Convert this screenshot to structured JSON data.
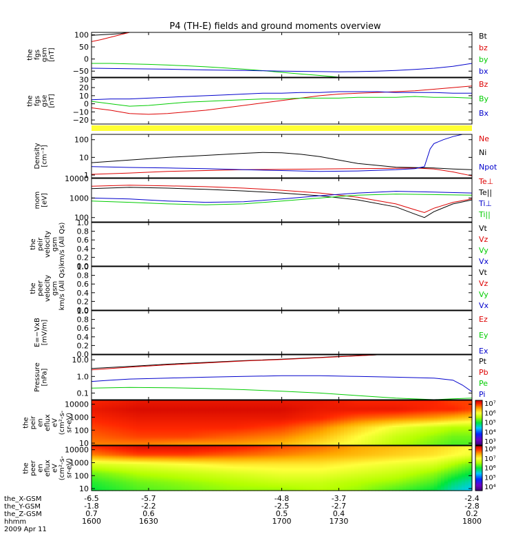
{
  "title": "P4 (TH-E) fields and ground moments overview",
  "x_axis": {
    "rows": [
      {
        "label": "the_X-GSM",
        "values": [
          "-6.5",
          "-5.7",
          "-4.8",
          "-3.7",
          "-2.4"
        ]
      },
      {
        "label": "the_Y-GSM",
        "values": [
          "-1.8",
          "-2.2",
          "-2.5",
          "-2.7",
          "-2.8"
        ]
      },
      {
        "label": "the_Z-GSM",
        "values": [
          "0.7",
          "0.6",
          "0.5",
          "0.4",
          "0.2"
        ]
      },
      {
        "label": "hhmm",
        "values": [
          "1600",
          "1630",
          "1700",
          "1730",
          "1800"
        ]
      }
    ],
    "date": "2009 Apr 11"
  },
  "colorbars": [
    {
      "labels": [
        "10⁷",
        "10⁶",
        "10⁵",
        "10⁴",
        "10³"
      ]
    },
    {
      "labels": [
        "10⁸",
        "10⁷",
        "10⁶",
        "10⁵",
        "10⁴"
      ]
    }
  ],
  "chart_data": [
    {
      "type": "line",
      "ylabel": [
        "the",
        "fgs",
        "gsm",
        "[nT]"
      ],
      "ylim": [
        -75,
        110
      ],
      "yticks": [
        -50,
        0,
        50,
        100
      ],
      "ytick_labels": [
        "−50",
        "0",
        "50",
        "100"
      ],
      "series": [
        {
          "name": "Bt",
          "color": "#000000",
          "x": [
            1600,
            1605,
            1610,
            1615,
            1620
          ],
          "y": [
            98,
            100,
            102,
            105,
            110
          ]
        },
        {
          "name": "bz",
          "color": "#dd0000",
          "x": [
            1600,
            1605,
            1610,
            1615,
            1620
          ],
          "y": [
            72,
            80,
            90,
            100,
            110
          ]
        },
        {
          "name": "by",
          "color": "#00cc00",
          "x": [
            1600,
            1610,
            1620,
            1630,
            1640,
            1650,
            1660,
            1670,
            1680,
            1690,
            1700,
            1710,
            1720,
            1730
          ],
          "y": [
            -18,
            -18,
            -20,
            -22,
            -25,
            -28,
            -32,
            -37,
            -42,
            -48,
            -55,
            -62,
            -68,
            -75
          ]
        },
        {
          "name": "bx",
          "color": "#0000cc",
          "x": [
            1600,
            1620,
            1640,
            1660,
            1680,
            1700,
            1720,
            1730,
            1740,
            1750,
            1760,
            1770,
            1780,
            1790,
            1800
          ],
          "y": [
            -38,
            -40,
            -42,
            -45,
            -47,
            -50,
            -52,
            -53,
            -52,
            -50,
            -47,
            -43,
            -38,
            -30,
            -18
          ]
        }
      ]
    },
    {
      "type": "line",
      "ylabel": [
        "the",
        "fgs",
        "gse",
        "[nT]"
      ],
      "ylim": [
        -25,
        32
      ],
      "yticks": [
        -20,
        -10,
        0,
        10,
        20,
        30
      ],
      "ytick_labels": [
        "−20",
        "−10",
        "0",
        "10",
        "20",
        "30"
      ],
      "series": [
        {
          "name": "Bz",
          "color": "#dd0000",
          "x": [
            1600,
            1610,
            1620,
            1630,
            1640,
            1650,
            1660,
            1670,
            1680,
            1690,
            1700,
            1710,
            1720,
            1730,
            1740,
            1750,
            1760,
            1770,
            1780,
            1790,
            1800
          ],
          "y": [
            -5,
            -8,
            -12,
            -13,
            -12,
            -10,
            -8,
            -5,
            -2,
            1,
            4,
            7,
            10,
            12,
            13,
            14,
            15,
            16,
            18,
            20,
            22
          ]
        },
        {
          "name": "By",
          "color": "#00cc00",
          "x": [
            1600,
            1610,
            1620,
            1630,
            1640,
            1650,
            1660,
            1670,
            1680,
            1690,
            1700,
            1710,
            1720,
            1730,
            1740,
            1750,
            1760,
            1770,
            1780,
            1790,
            1800
          ],
          "y": [
            3,
            0,
            -3,
            -2,
            0,
            2,
            3,
            4,
            5,
            6,
            6,
            7,
            7,
            7,
            8,
            8,
            8,
            9,
            8,
            8,
            7
          ]
        },
        {
          "name": "Bx",
          "color": "#0000cc",
          "x": [
            1600,
            1610,
            1620,
            1630,
            1640,
            1650,
            1660,
            1670,
            1680,
            1690,
            1700,
            1710,
            1720,
            1730,
            1740,
            1750,
            1760,
            1770,
            1780,
            1790,
            1800
          ],
          "y": [
            5,
            6,
            6,
            7,
            8,
            9,
            10,
            11,
            12,
            13,
            13,
            14,
            14,
            15,
            15,
            15,
            14,
            14,
            14,
            13,
            13
          ]
        }
      ]
    },
    {
      "type": "line",
      "scale": "log",
      "ylabel": [
        "Density",
        "[cm⁻³]"
      ],
      "ylim": [
        0.7,
        200
      ],
      "yticks": [
        1,
        10,
        100
      ],
      "ytick_labels": [
        "1",
        "10",
        "100"
      ],
      "series": [
        {
          "name": "Ne",
          "color": "#dd0000",
          "x": [
            1600,
            1620,
            1640,
            1660,
            1680,
            1700,
            1720,
            1740,
            1760,
            1770,
            1780,
            1790,
            1800
          ],
          "y": [
            1.1,
            1.3,
            1.6,
            1.8,
            2.0,
            2.1,
            2.2,
            2.3,
            2.4,
            2.5,
            2.2,
            1.5,
            0.9
          ]
        },
        {
          "name": "Ni",
          "color": "#000000",
          "x": [
            1600,
            1620,
            1640,
            1660,
            1680,
            1690,
            1700,
            1710,
            1720,
            1730,
            1740,
            1760,
            1780,
            1790,
            1800
          ],
          "y": [
            5,
            7,
            10,
            13,
            17,
            19,
            18,
            15,
            11,
            7,
            4.5,
            2.8,
            2.5,
            2.2,
            2.0
          ]
        },
        {
          "name": "Npot",
          "color": "#0000cc",
          "x": [
            1600,
            1620,
            1640,
            1660,
            1680,
            1700,
            1720,
            1740,
            1760,
            1770,
            1775,
            1778,
            1780,
            1785,
            1790,
            1795,
            1800
          ],
          "y": [
            3.0,
            2.7,
            2.5,
            2.3,
            2.0,
            1.8,
            1.6,
            1.7,
            2.0,
            2.3,
            3,
            30,
            60,
            100,
            150,
            200,
            200
          ]
        }
      ]
    },
    {
      "type": "line",
      "scale": "log",
      "ylabel": [
        "mom",
        "[eV]"
      ],
      "ylim": [
        60,
        10000
      ],
      "yticks": [
        100,
        1000,
        10000
      ],
      "ytick_labels": [
        "100",
        "1000",
        "10000"
      ],
      "series": [
        {
          "name": "Te⊥",
          "color": "#dd0000",
          "x": [
            1600,
            1620,
            1640,
            1660,
            1680,
            1700,
            1720,
            1740,
            1760,
            1770,
            1775,
            1780,
            1790,
            1800
          ],
          "y": [
            4000,
            4500,
            4200,
            3800,
            3200,
            2500,
            1800,
            1100,
            500,
            250,
            180,
            300,
            600,
            900
          ]
        },
        {
          "name": "Te||",
          "color": "#000000",
          "x": [
            1600,
            1620,
            1640,
            1660,
            1680,
            1700,
            1720,
            1740,
            1760,
            1770,
            1775,
            1780,
            1790,
            1800
          ],
          "y": [
            3000,
            3500,
            3200,
            2800,
            2300,
            1800,
            1300,
            800,
            350,
            150,
            100,
            200,
            500,
            800
          ]
        },
        {
          "name": "Ti⊥",
          "color": "#0000cc",
          "x": [
            1600,
            1620,
            1640,
            1660,
            1680,
            1700,
            1720,
            1740,
            1760,
            1780,
            1800
          ],
          "y": [
            1000,
            900,
            700,
            600,
            650,
            900,
            1300,
            1800,
            2200,
            2000,
            1800
          ]
        },
        {
          "name": "Ti||",
          "color": "#00cc00",
          "x": [
            1600,
            1620,
            1640,
            1660,
            1680,
            1700,
            1720,
            1740,
            1760,
            1780,
            1800
          ],
          "y": [
            700,
            600,
            500,
            450,
            500,
            700,
            1000,
            1400,
            1600,
            1500,
            1400
          ]
        }
      ]
    },
    {
      "type": "line",
      "ylabel": [
        "the",
        "peir",
        "velocity",
        "gsm",
        "km/s (All Qs)"
      ],
      "ylim": [
        0,
        1
      ],
      "yticks": [
        0,
        0.2,
        0.4,
        0.6,
        0.8,
        1.0
      ],
      "ytick_labels": [
        "0.0",
        "0.2",
        "0.4",
        "0.6",
        "0.8",
        "1.0"
      ],
      "series": [
        {
          "name": "Vt",
          "color": "#000000",
          "x": [],
          "y": []
        },
        {
          "name": "Vz",
          "color": "#dd0000",
          "x": [],
          "y": []
        },
        {
          "name": "Vy",
          "color": "#00cc00",
          "x": [],
          "y": []
        },
        {
          "name": "Vx",
          "color": "#0000cc",
          "x": [],
          "y": []
        }
      ]
    },
    {
      "type": "line",
      "ylabel": [
        "the",
        "peer",
        "velocity",
        "gsm",
        "km/s (All Qs)"
      ],
      "ylim": [
        0,
        1
      ],
      "yticks": [
        0,
        0.2,
        0.4,
        0.6,
        0.8,
        1.0
      ],
      "ytick_labels": [
        "0.0",
        "0.2",
        "0.4",
        "0.6",
        "0.8",
        "1.0"
      ],
      "series": [
        {
          "name": "Vt",
          "color": "#000000",
          "x": [],
          "y": []
        },
        {
          "name": "Vz",
          "color": "#dd0000",
          "x": [],
          "y": []
        },
        {
          "name": "Vy",
          "color": "#00cc00",
          "x": [],
          "y": []
        },
        {
          "name": "Vx",
          "color": "#0000cc",
          "x": [],
          "y": []
        }
      ]
    },
    {
      "type": "line",
      "ylabel": [
        "E=−VxB",
        "[mV/m]"
      ],
      "ylim": [
        0,
        1
      ],
      "yticks": [
        0,
        0.2,
        0.4,
        0.6,
        0.8,
        1.0
      ],
      "ytick_labels": [
        "0.0",
        "0.2",
        "0.4",
        "0.6",
        "0.8",
        "1.0"
      ],
      "series": [
        {
          "name": "Ez",
          "color": "#dd0000",
          "x": [],
          "y": []
        },
        {
          "name": "Ey",
          "color": "#00cc00",
          "x": [],
          "y": []
        },
        {
          "name": "Ex",
          "color": "#0000cc",
          "x": [],
          "y": []
        }
      ]
    },
    {
      "type": "line",
      "scale": "log",
      "ylabel": [
        "Pressure",
        "[nPa]"
      ],
      "ylim": [
        0.04,
        20
      ],
      "yticks": [
        0.1,
        1,
        10
      ],
      "ytick_labels": [
        "0.1",
        "1.0",
        "10.0"
      ],
      "series": [
        {
          "name": "Pt",
          "color": "#000000",
          "x": [
            1600,
            1620,
            1640,
            1660,
            1680,
            1700,
            1720,
            1730,
            1740,
            1750
          ],
          "y": [
            3.0,
            4.0,
            5.5,
            7.0,
            9.0,
            11,
            14,
            16,
            18,
            20
          ]
        },
        {
          "name": "Pb",
          "color": "#dd0000",
          "x": [
            1600,
            1620,
            1640,
            1660,
            1680,
            1700,
            1720,
            1730,
            1740,
            1750
          ],
          "y": [
            2.5,
            3.6,
            5.0,
            6.5,
            8.5,
            10.5,
            13.5,
            15.5,
            17.5,
            20
          ]
        },
        {
          "name": "Pe",
          "color": "#00cc00",
          "x": [
            1600,
            1620,
            1640,
            1660,
            1680,
            1700,
            1720,
            1740,
            1760,
            1780,
            1790,
            1800
          ],
          "y": [
            0.2,
            0.22,
            0.21,
            0.19,
            0.16,
            0.13,
            0.1,
            0.07,
            0.05,
            0.04,
            0.045,
            0.05
          ]
        },
        {
          "name": "Pi",
          "color": "#0000cc",
          "x": [
            1600,
            1610,
            1620,
            1640,
            1660,
            1680,
            1700,
            1720,
            1740,
            1760,
            1780,
            1790,
            1795,
            1800
          ],
          "y": [
            0.5,
            0.6,
            0.7,
            0.8,
            0.9,
            1.0,
            1.1,
            1.1,
            1.0,
            0.9,
            0.8,
            0.6,
            0.3,
            0.12
          ]
        }
      ]
    },
    {
      "type": "heatmap",
      "ylabel": [
        "the",
        "peir",
        "en",
        "eflux",
        "eV",
        "(cm²-s-",
        "sr-eV)"
      ],
      "scale": "log",
      "ylim": [
        7,
        20000
      ],
      "yticks": [
        10,
        100,
        1000,
        10000
      ],
      "ytick_labels": [
        "10",
        "100",
        "1000",
        "10000"
      ],
      "colorbar_range_log10": [
        3,
        7
      ],
      "t_nodes": [
        1600,
        1625,
        1650,
        1675,
        1700,
        1720,
        1740,
        1760,
        1780,
        1790,
        1800
      ],
      "e_nodes_log10": [
        0.85,
        1.5,
        2.2,
        2.9,
        3.6,
        4.3
      ],
      "values_log10": [
        [
          6.4,
          6.4,
          6.3,
          6.3,
          6.2,
          6.0,
          5.8,
          5.5,
          5.3,
          5.2,
          5.2
        ],
        [
          6.5,
          6.6,
          6.6,
          6.5,
          6.4,
          6.2,
          5.9,
          5.6,
          5.4,
          5.3,
          5.3
        ],
        [
          6.6,
          6.7,
          6.7,
          6.7,
          6.6,
          6.4,
          6.1,
          5.8,
          5.6,
          5.5,
          5.5
        ],
        [
          6.7,
          6.8,
          6.8,
          6.8,
          6.8,
          6.7,
          6.5,
          6.4,
          6.3,
          6.2,
          6.1
        ],
        [
          6.8,
          6.9,
          6.9,
          6.9,
          6.9,
          6.8,
          6.8,
          6.8,
          6.7,
          6.7,
          6.6
        ],
        [
          6.7,
          6.8,
          6.8,
          6.8,
          6.8,
          6.8,
          6.7,
          6.7,
          6.7,
          6.6,
          6.6
        ]
      ]
    },
    {
      "type": "heatmap",
      "ylabel": [
        "the",
        "peer",
        "en",
        "eflux",
        "eV",
        "(cm²-s-",
        "sr-eV)"
      ],
      "scale": "log",
      "ylim": [
        7,
        20000
      ],
      "yticks": [
        10,
        100,
        1000,
        10000
      ],
      "ytick_labels": [
        "10",
        "100",
        "1000",
        "10000"
      ],
      "colorbar_range_log10": [
        4,
        8
      ],
      "t_nodes": [
        1600,
        1625,
        1650,
        1675,
        1700,
        1720,
        1740,
        1760,
        1780,
        1790,
        1800
      ],
      "e_nodes_log10": [
        0.85,
        1.5,
        2.2,
        2.9,
        3.6,
        4.3
      ],
      "values_log10": [
        [
          6.0,
          6.2,
          6.3,
          6.4,
          6.4,
          6.5,
          6.4,
          6.2,
          6.0,
          5.7,
          5.5
        ],
        [
          6.1,
          6.3,
          6.4,
          6.5,
          6.6,
          6.6,
          6.5,
          6.4,
          6.2,
          5.9,
          5.7
        ],
        [
          6.3,
          6.5,
          6.6,
          6.7,
          6.8,
          6.8,
          6.7,
          6.6,
          6.4,
          6.2,
          6.0
        ],
        [
          6.7,
          6.8,
          6.9,
          7.0,
          7.0,
          7.0,
          6.9,
          6.8,
          6.7,
          6.5,
          6.3
        ],
        [
          7.4,
          7.6,
          7.6,
          7.5,
          7.4,
          7.3,
          7.2,
          7.1,
          7.0,
          6.9,
          6.8
        ],
        [
          7.7,
          7.9,
          7.9,
          7.8,
          7.6,
          7.5,
          7.3,
          7.2,
          7.1,
          7.0,
          6.9
        ]
      ]
    }
  ]
}
